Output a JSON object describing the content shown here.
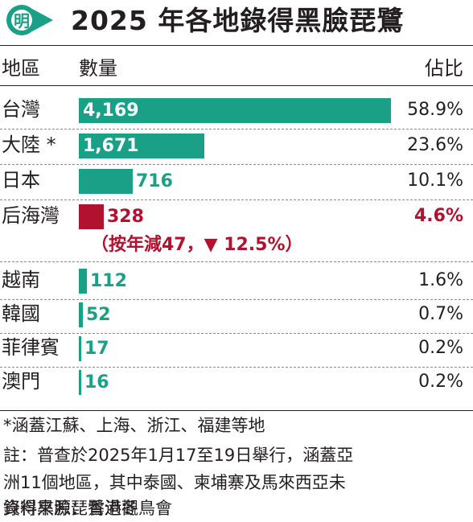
{
  "logo": {
    "char": "明"
  },
  "title": "2025 年各地錄得黑臉琵鷺",
  "columns": {
    "region": "地區",
    "count": "數量",
    "share": "佔比"
  },
  "colors": {
    "bar": "#19a086",
    "highlight": "#b1122e",
    "logo": "#19a086"
  },
  "rows": [
    {
      "label": "台灣",
      "value_text": "4,169",
      "pct": "58.9%"
    },
    {
      "label": "大陸 *",
      "value_text": "1,671",
      "pct": "23.6%"
    },
    {
      "label": "日本",
      "value_text": "716",
      "pct": "10.1%"
    },
    {
      "label": "后海灣",
      "value_text": "328",
      "pct": "4.6%",
      "change": "（按年減47，▼ 12.5%）"
    },
    {
      "label": "越南",
      "value_text": "112",
      "pct": "1.6%"
    },
    {
      "label": "韓國",
      "value_text": "52",
      "pct": "0.7%"
    },
    {
      "label": "菲律賓",
      "value_text": "17",
      "pct": "0.2%"
    },
    {
      "label": "澳門",
      "value_text": "16",
      "pct": "0.2%"
    }
  ],
  "chart_data": {
    "type": "bar",
    "orientation": "horizontal",
    "title": "2025 年各地錄得黑臉琵鷺",
    "categories": [
      "台灣",
      "大陸 *",
      "日本",
      "后海灣",
      "越南",
      "韓國",
      "菲律賓",
      "澳門"
    ],
    "values": [
      4169,
      1671,
      716,
      328,
      112,
      52,
      17,
      16
    ],
    "shares_percent": [
      58.9,
      23.6,
      10.1,
      4.6,
      1.6,
      0.7,
      0.2,
      0.2
    ],
    "highlighted_category": "后海灣",
    "annotation": "（按年減47，▼ 12.5%）",
    "grid": false,
    "legend": "none"
  },
  "notes": {
    "line1": "*涵蓋江蘇、上海、浙江、福建等地",
    "line2": "註：普查於2025年1月17至19日舉行，涵蓋亞",
    "line3": "洲11個地區，其中泰國、柬埔寨及馬來西亞未",
    "line4": "錄得黑臉琵鷺過冬",
    "source": "資料來源：香港觀鳥會"
  }
}
